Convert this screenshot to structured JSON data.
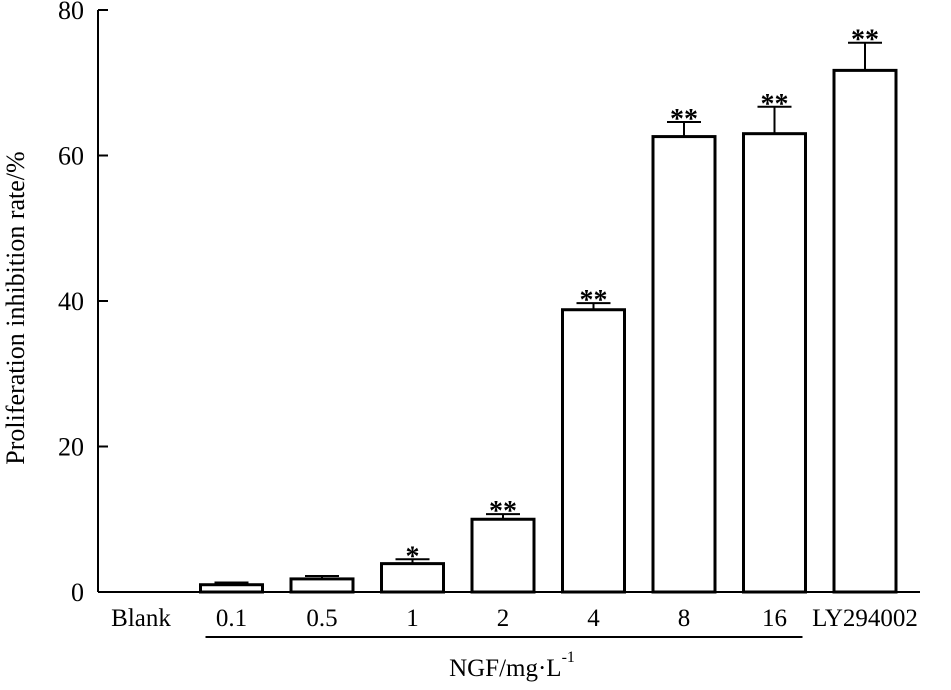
{
  "chart_data": {
    "type": "bar",
    "ylabel": "Proliferation inhibition rate/%",
    "xlabel": "NGF/mg·L",
    "xlabel_superscript": "-1",
    "ylim": [
      0,
      80
    ],
    "yticks": [
      "0",
      "20",
      "40",
      "60",
      "80"
    ],
    "grid": false,
    "legend": "none",
    "categories": [
      "Blank",
      "0.1",
      "0.5",
      "1",
      "2",
      "4",
      "8",
      "16",
      "LY294002"
    ],
    "values": [
      0,
      1.0,
      1.8,
      3.9,
      10.0,
      38.8,
      62.6,
      63.0,
      71.7
    ],
    "errors": [
      0,
      0.3,
      0.4,
      0.6,
      0.7,
      0.9,
      2.0,
      3.7,
      3.8
    ],
    "significance": [
      "",
      "",
      "",
      "*",
      "**",
      "**",
      "**",
      "**",
      "**"
    ],
    "ngf_group": [
      "0.1",
      "0.5",
      "1",
      "2",
      "4",
      "8",
      "16"
    ],
    "bar_fill": "#ffffff",
    "bar_stroke": "#000000"
  }
}
